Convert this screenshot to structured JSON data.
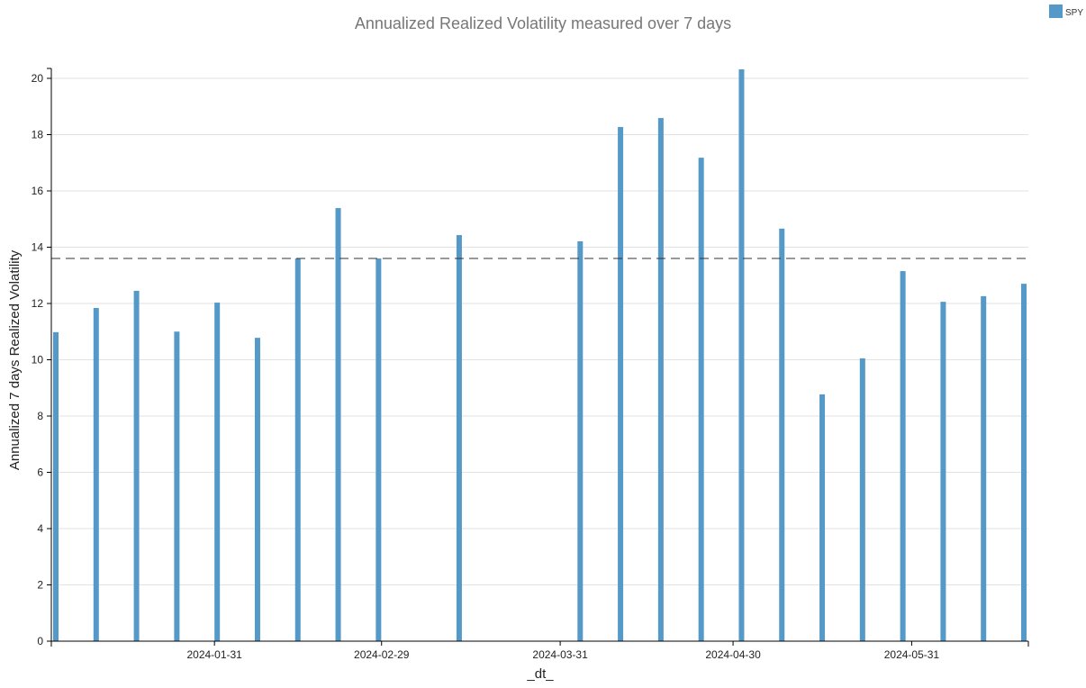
{
  "chart_data": {
    "type": "bar",
    "title": "Annualized Realized Volatility measured over 7 days",
    "xlabel": "_dt_",
    "ylabel": "Annualized 7 days Realized Volatility",
    "ylim": [
      0,
      20.3
    ],
    "yticks": [
      0,
      2,
      4,
      6,
      8,
      10,
      12,
      14,
      16,
      18,
      20
    ],
    "xticks": [
      "2024-01-31",
      "2024-02-29",
      "2024-03-31",
      "2024-04-30",
      "2024-05-31"
    ],
    "xrange": [
      "2024-01-03",
      "2024-06-19"
    ],
    "legend": {
      "position": "top-right",
      "entries": [
        "SPY"
      ]
    },
    "color": "#5499c7",
    "reference_line": 13.6,
    "grid": true,
    "series": [
      {
        "name": "SPY",
        "points": [
          [
            "2024-01-03",
            10.98
          ],
          [
            "2024-01-10",
            11.84
          ],
          [
            "2024-01-17",
            12.45
          ],
          [
            "2024-01-24",
            11.0
          ],
          [
            "2024-01-31",
            12.03
          ],
          [
            "2024-02-07",
            10.78
          ],
          [
            "2024-02-14",
            13.6
          ],
          [
            "2024-02-21",
            15.39
          ],
          [
            "2024-02-28",
            13.6
          ],
          [
            "2024-03-13",
            14.43
          ],
          [
            "2024-04-03",
            14.21
          ],
          [
            "2024-04-10",
            18.27
          ],
          [
            "2024-04-17",
            18.59
          ],
          [
            "2024-04-24",
            17.18
          ],
          [
            "2024-05-01",
            20.32
          ],
          [
            "2024-05-08",
            14.66
          ],
          [
            "2024-05-15",
            8.77
          ],
          [
            "2024-05-22",
            10.05
          ],
          [
            "2024-05-29",
            13.15
          ],
          [
            "2024-06-05",
            12.06
          ],
          [
            "2024-06-12",
            12.26
          ],
          [
            "2024-06-19",
            12.7
          ]
        ]
      }
    ]
  }
}
